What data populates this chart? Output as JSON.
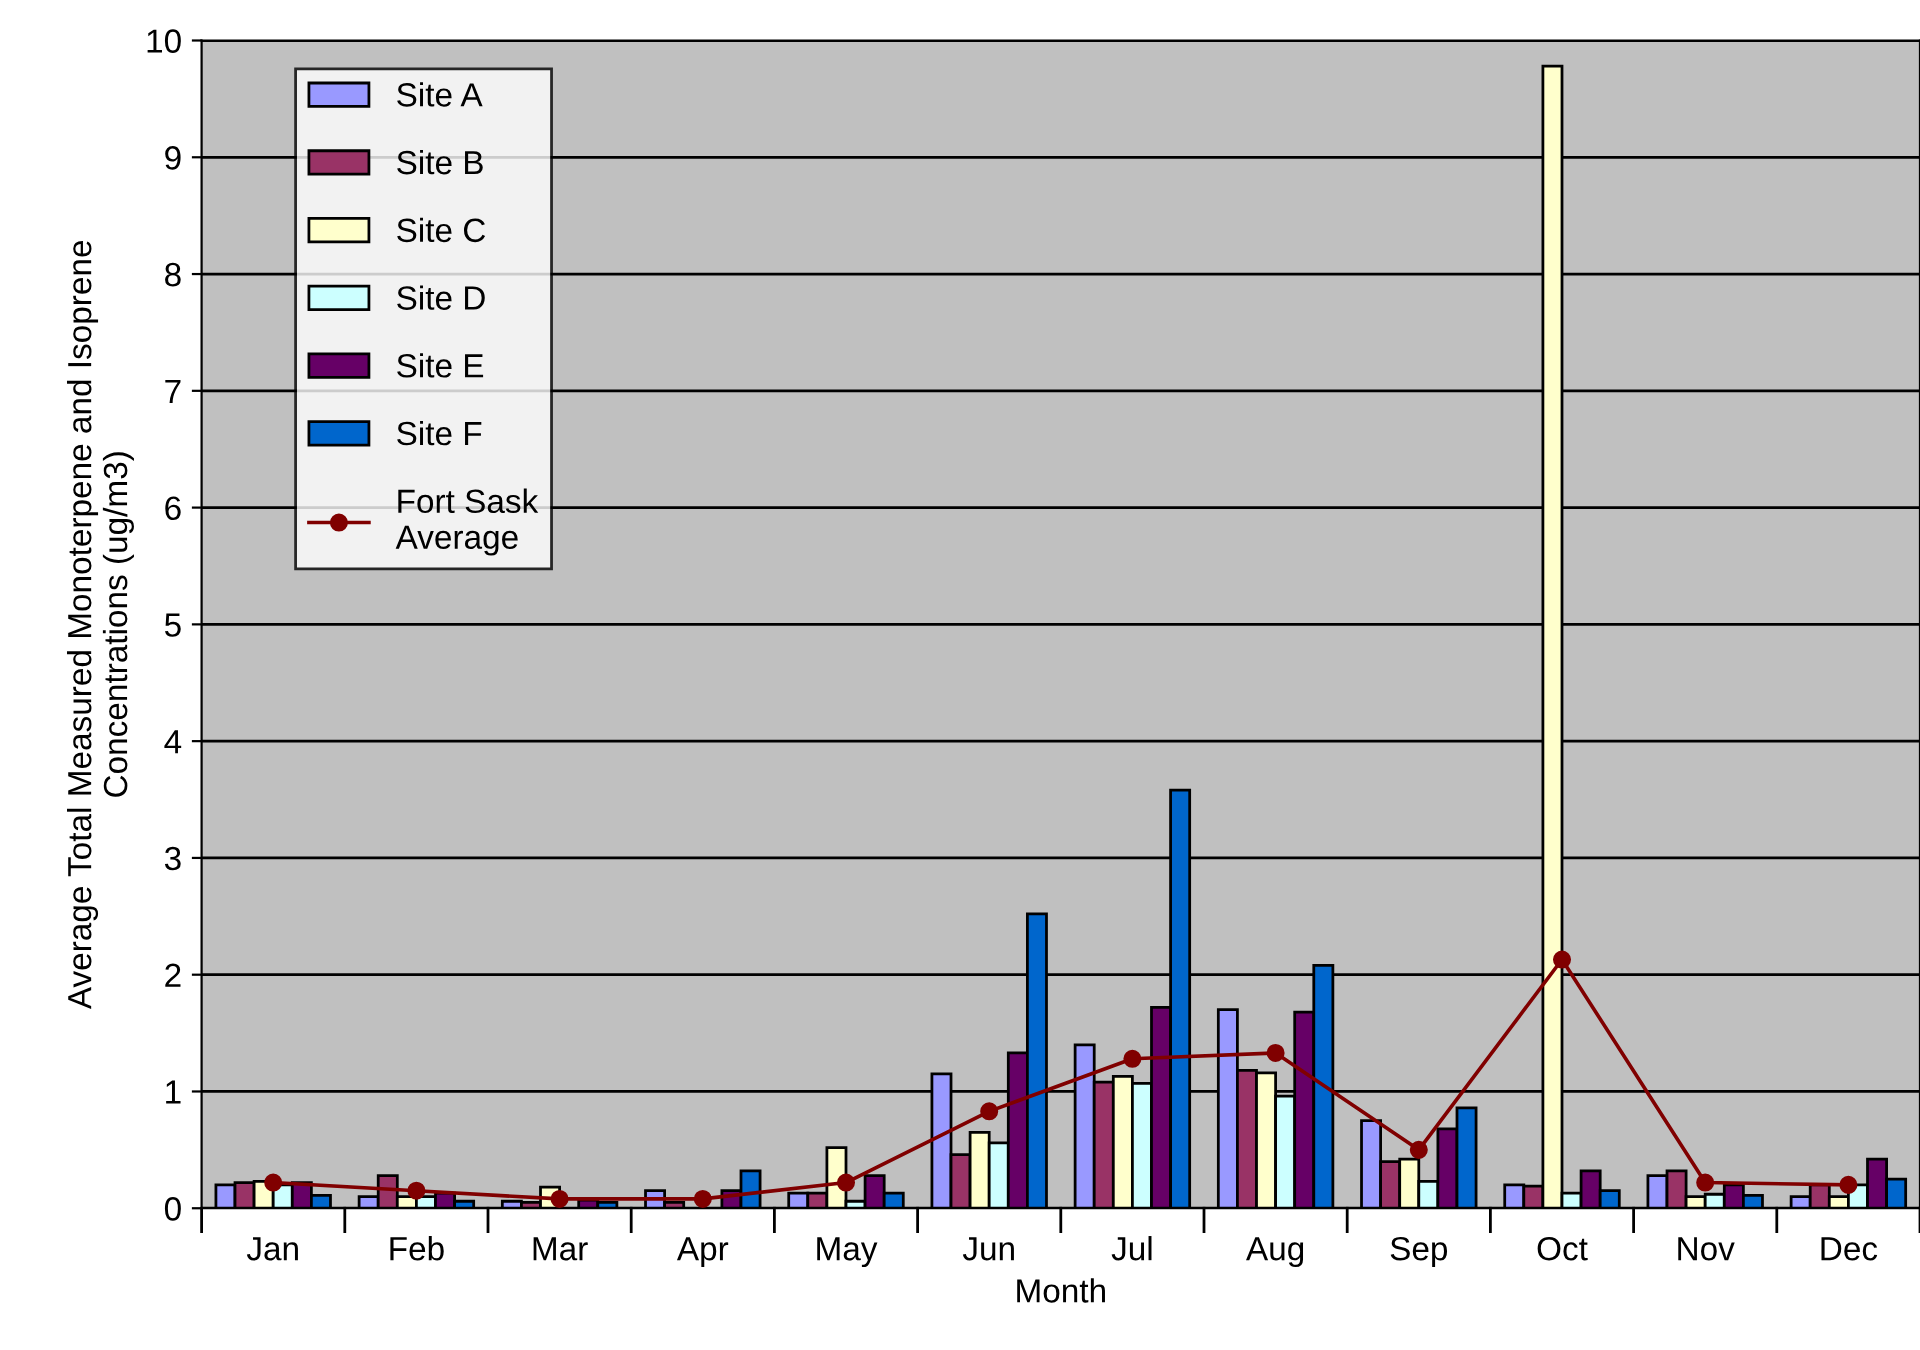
{
  "chart_data": {
    "type": "bar",
    "xlabel": "Month",
    "ylabel": "Average Total Measured Monoterpene and Isoprene\nConcentrations (ug/m3)",
    "categories": [
      "Jan",
      "Feb",
      "Mar",
      "Apr",
      "May",
      "Jun",
      "Jul",
      "Aug",
      "Sep",
      "Oct",
      "Nov",
      "Dec"
    ],
    "series": [
      {
        "name": "Site A",
        "color": "#9999ff",
        "values": [
          0.2,
          0.1,
          0.06,
          0.15,
          0.13,
          1.15,
          1.4,
          1.7,
          0.75,
          0.2,
          0.28,
          0.1
        ]
      },
      {
        "name": "Site B",
        "color": "#993366",
        "values": [
          0.22,
          0.28,
          0.05,
          0.05,
          0.13,
          0.46,
          1.08,
          1.18,
          0.4,
          0.19,
          0.32,
          0.2
        ]
      },
      {
        "name": "Site C",
        "color": "#ffffcc",
        "values": [
          0.23,
          0.1,
          0.18,
          null,
          0.52,
          0.65,
          1.13,
          1.16,
          0.42,
          9.78,
          0.1,
          0.1
        ]
      },
      {
        "name": "Site D",
        "color": "#ccffff",
        "values": [
          0.2,
          0.1,
          null,
          null,
          0.06,
          0.56,
          1.07,
          0.96,
          0.23,
          0.13,
          0.12,
          0.2
        ]
      },
      {
        "name": "Site E",
        "color": "#660066",
        "values": [
          0.22,
          0.13,
          0.07,
          0.15,
          0.28,
          1.33,
          1.72,
          1.68,
          0.68,
          0.32,
          0.2,
          0.42
        ]
      },
      {
        "name": "Site F",
        "color": "#0066cc",
        "values": [
          0.11,
          0.06,
          0.05,
          0.32,
          0.13,
          2.52,
          3.58,
          2.08,
          0.86,
          0.15,
          0.11,
          0.25
        ]
      },
      {
        "name": "Fort Sask\nAverage",
        "type": "line",
        "color": "#800000",
        "marker": "circle",
        "values": [
          0.22,
          0.15,
          0.08,
          0.08,
          0.22,
          0.83,
          1.28,
          1.33,
          0.5,
          2.13,
          0.22,
          0.2
        ]
      }
    ],
    "ylim": [
      0,
      10
    ],
    "yticks": [
      0,
      1,
      2,
      3,
      4,
      5,
      6,
      7,
      8,
      9,
      10
    ],
    "grid": "y",
    "legend": "top left"
  }
}
